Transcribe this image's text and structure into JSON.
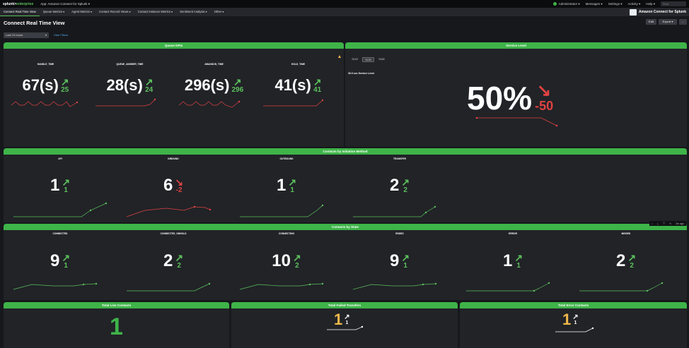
{
  "topbar": {
    "logo": "splunk>enterprise",
    "app": "App: Amazon Connect for Splunk ▾",
    "user": "Administrator ▾",
    "messages": "Messages ▾",
    "settings": "Settings ▾",
    "activity": "Activity ▾",
    "help": "Help ▾",
    "find_placeholder": "Find"
  },
  "nav": {
    "tabs": [
      "Connect Real Time View",
      "Queue Metrics ▾",
      "Agent Metrics ▾",
      "Contact Record Views ▾",
      "Contact Instance Metrics ▾",
      "Sentiment Analysis ▾",
      "Other ▾"
    ],
    "brand": "Amazon Connect for Splunk"
  },
  "page": {
    "title": "Connect Real Time View",
    "edit": "Edit",
    "export": "Export ▾",
    "more": "...",
    "time_picker": "Last 24 hours",
    "hide_filters": "Hide Filters"
  },
  "queue_kpis": {
    "title": "Queue KPIs",
    "items": [
      {
        "label": "HANDLE_TIME",
        "value": "67(s)",
        "delta": "25",
        "dir": "up"
      },
      {
        "label": "QUEUE_ANSWER_TIME",
        "value": "28(s)",
        "delta": "24",
        "dir": "up"
      },
      {
        "label": "ABANDON_TIME",
        "value": "296(s)",
        "delta": "296",
        "dir": "up"
      },
      {
        "label": "HOLD_TIME",
        "value": "41(s)",
        "delta": "41",
        "dir": "up"
      }
    ]
  },
  "service_level": {
    "title": "Service Level",
    "tabs": [
      "SL15",
      "SL30",
      "SL60"
    ],
    "selected": "SL30",
    "subtitle": "30.0 sec Service Level",
    "value": "50%",
    "delta": "-50"
  },
  "initiation": {
    "title": "Contacts by Initiation Method",
    "items": [
      {
        "label": "API",
        "value": "1",
        "delta": "1",
        "dir": "up"
      },
      {
        "label": "INBOUND",
        "value": "6",
        "delta": "-2",
        "dir": "down"
      },
      {
        "label": "OUTBOUND",
        "value": "1",
        "delta": "1",
        "dir": "up"
      },
      {
        "label": "TRANSFER",
        "value": "2",
        "delta": "2",
        "dir": "up"
      }
    ]
  },
  "state": {
    "title": "Contacts by State",
    "toolbar_ago": "2m ago",
    "items": [
      {
        "label": "CONNECTED",
        "value": "9",
        "delta": "1",
        "dir": "up"
      },
      {
        "label": "CONNECTED_ONHOLD",
        "value": "2",
        "delta": "2",
        "dir": "up"
      },
      {
        "label": "CONNECTING",
        "value": "10",
        "delta": "2",
        "dir": "up"
      },
      {
        "label": "ENDED",
        "value": "9",
        "delta": "1",
        "dir": "up"
      },
      {
        "label": "ERROR",
        "value": "1",
        "delta": "1",
        "dir": "up"
      },
      {
        "label": "MISSED",
        "value": "2",
        "delta": "2",
        "dir": "up"
      }
    ]
  },
  "bottom": [
    {
      "title": "Total Live Contacts",
      "value": "1",
      "color": "#3eb449"
    },
    {
      "title": "Total Failed Transfers",
      "value": "1",
      "delta": "1",
      "color": "#f0b84a"
    },
    {
      "title": "Total Error Contacts",
      "value": "1",
      "delta": "1",
      "color": "#f0b84a"
    }
  ],
  "colors": {
    "accent": "#3eb449",
    "up": "#5cc05c",
    "down": "#e04242",
    "warn": "#f0b84a",
    "link": "#4fa7e3"
  }
}
